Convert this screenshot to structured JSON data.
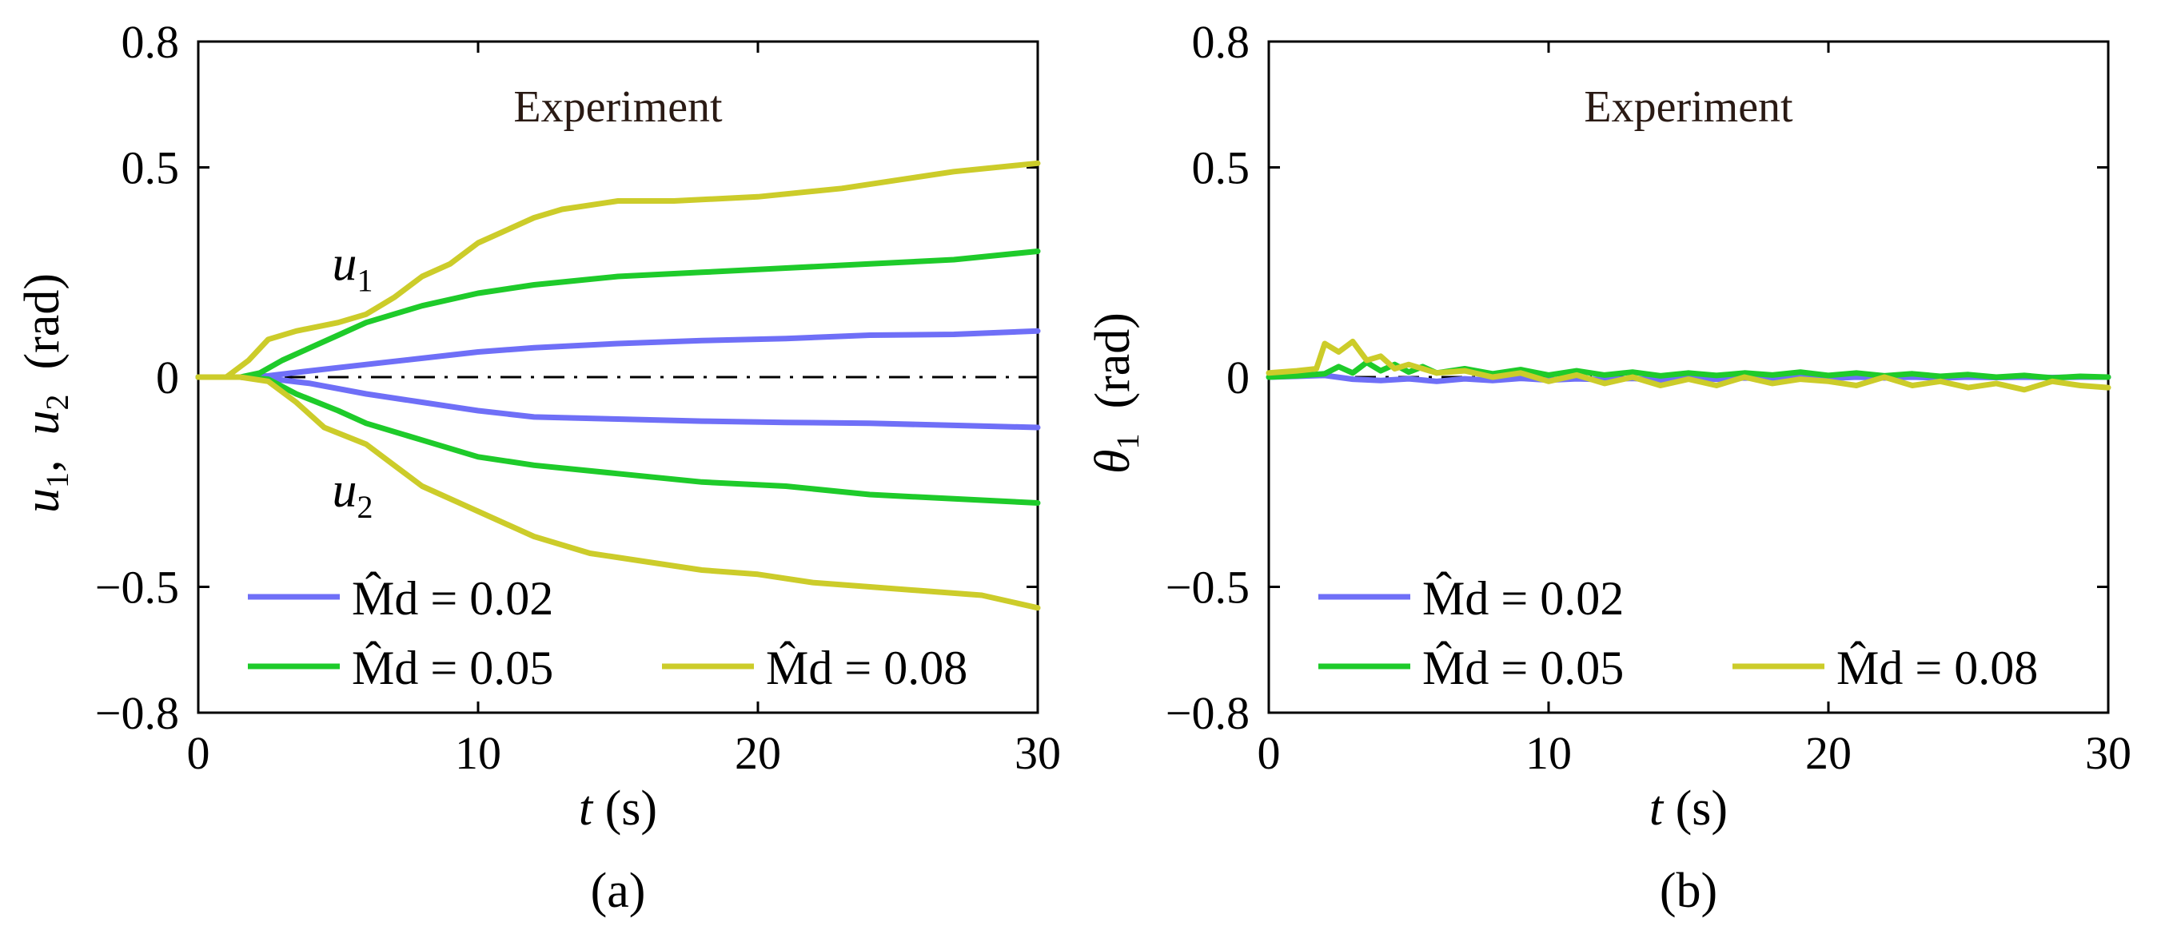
{
  "figure": {
    "captions": [
      "(a)",
      "(b)"
    ]
  },
  "legend_entries": [
    {
      "label": "M̂d = 0.02",
      "color": "#6f6ff7"
    },
    {
      "label": "M̂d = 0.05",
      "color": "#1ecb2a"
    },
    {
      "label": "M̂d = 0.08",
      "color": "#cccc2a"
    }
  ],
  "chart_data": [
    {
      "type": "line",
      "panel": "(a)",
      "title": "Experiment",
      "xlabel": "t (s)",
      "ylabel": "u1, u2 (rad)",
      "xlim": [
        0,
        30
      ],
      "ylim": [
        -0.8,
        0.8
      ],
      "xticks": [
        "0",
        "10",
        "20",
        "30"
      ],
      "yticks": [
        "0.8",
        "0.5",
        "0",
        "−0.5",
        "−0.8"
      ],
      "ytick_values": [
        0.8,
        0.5,
        0,
        -0.5,
        -0.8
      ],
      "annotations": [
        {
          "text": "u1",
          "x": 5.5,
          "y": 0.27
        },
        {
          "text": "u2",
          "x": 5.5,
          "y": -0.27
        }
      ],
      "reference_line": {
        "y": 0,
        "style": "dash-dot"
      },
      "series": [
        {
          "name": "M̂d = 0.02 (u1)",
          "color": "#6f6ff7",
          "x": [
            0,
            1.5,
            2.5,
            4,
            6,
            8,
            10,
            12,
            15,
            18,
            21,
            24,
            27,
            30
          ],
          "y": [
            0,
            0,
            0.003,
            0.015,
            0.03,
            0.045,
            0.06,
            0.07,
            0.08,
            0.087,
            0.092,
            0.1,
            0.102,
            0.11
          ]
        },
        {
          "name": "M̂d = 0.02 (u2)",
          "color": "#6f6ff7",
          "x": [
            0,
            1.5,
            2.5,
            4,
            6,
            8,
            10,
            12,
            15,
            18,
            21,
            24,
            27,
            30
          ],
          "y": [
            0,
            0,
            -0.003,
            -0.015,
            -0.04,
            -0.06,
            -0.08,
            -0.095,
            -0.1,
            -0.105,
            -0.108,
            -0.11,
            -0.115,
            -0.12
          ]
        },
        {
          "name": "M̂d = 0.05 (u1)",
          "color": "#1ecb2a",
          "x": [
            0,
            1.5,
            2.2,
            3,
            4,
            5,
            6,
            8,
            10,
            12,
            15,
            18,
            21,
            24,
            27,
            30
          ],
          "y": [
            0,
            0,
            0.01,
            0.04,
            0.07,
            0.1,
            0.13,
            0.17,
            0.2,
            0.22,
            0.24,
            0.25,
            0.26,
            0.27,
            0.28,
            0.3
          ]
        },
        {
          "name": "M̂d = 0.05 (u2)",
          "color": "#1ecb2a",
          "x": [
            0,
            1.5,
            2.5,
            3.5,
            5,
            6,
            8,
            10,
            12,
            15,
            18,
            21,
            24,
            27,
            30
          ],
          "y": [
            0,
            0,
            -0.005,
            -0.04,
            -0.08,
            -0.11,
            -0.15,
            -0.19,
            -0.21,
            -0.23,
            -0.25,
            -0.26,
            -0.28,
            -0.29,
            -0.3
          ]
        },
        {
          "name": "M̂d = 0.08 (u1)",
          "color": "#cccc2a",
          "x": [
            0,
            1,
            1.8,
            2.5,
            3.5,
            5,
            6,
            7,
            8,
            9,
            10,
            11,
            12,
            13,
            15,
            17,
            20,
            23,
            25,
            27,
            30
          ],
          "y": [
            0,
            0,
            0.04,
            0.09,
            0.11,
            0.13,
            0.15,
            0.19,
            0.24,
            0.27,
            0.32,
            0.35,
            0.38,
            0.4,
            0.42,
            0.42,
            0.43,
            0.45,
            0.47,
            0.49,
            0.51
          ]
        },
        {
          "name": "M̂d = 0.08 (u2)",
          "color": "#cccc2a",
          "x": [
            0,
            1.5,
            2.5,
            3.5,
            4.5,
            6,
            7,
            8,
            10,
            12,
            14,
            16,
            18,
            20,
            22,
            24,
            26,
            28,
            30
          ],
          "y": [
            0,
            0,
            -0.01,
            -0.06,
            -0.12,
            -0.16,
            -0.21,
            -0.26,
            -0.32,
            -0.38,
            -0.42,
            -0.44,
            -0.46,
            -0.47,
            -0.49,
            -0.5,
            -0.51,
            -0.52,
            -0.55
          ]
        }
      ]
    },
    {
      "type": "line",
      "panel": "(b)",
      "title": "Experiment",
      "xlabel": "t (s)",
      "ylabel": "θ1 (rad)",
      "xlim": [
        0,
        30
      ],
      "ylim": [
        -0.8,
        0.8
      ],
      "xticks": [
        "0",
        "10",
        "20",
        "30"
      ],
      "yticks": [
        "0.8",
        "0.5",
        "0",
        "−0.5",
        "−0.8"
      ],
      "ytick_values": [
        0.8,
        0.5,
        0,
        -0.5,
        -0.8
      ],
      "reference_line": {
        "y": 0,
        "style": "dash-dot"
      },
      "series": [
        {
          "name": "M̂d = 0.02",
          "color": "#6f6ff7",
          "x": [
            0,
            1,
            2,
            3,
            4,
            5,
            6,
            7,
            8,
            9,
            10,
            11,
            12,
            13,
            14,
            15,
            16,
            17,
            18,
            19,
            20,
            21,
            22,
            23,
            24,
            25,
            26,
            27,
            28,
            29,
            30
          ],
          "y": [
            0,
            0.002,
            0.004,
            -0.005,
            -0.008,
            -0.004,
            -0.01,
            -0.004,
            -0.008,
            -0.003,
            -0.007,
            -0.004,
            -0.006,
            -0.003,
            -0.007,
            -0.002,
            -0.005,
            -0.002,
            -0.004,
            -0.001,
            -0.003,
            0,
            -0.002,
            0,
            -0.002,
            0,
            -0.001,
            0,
            -0.001,
            0,
            0
          ]
        },
        {
          "name": "M̂d = 0.05",
          "color": "#1ecb2a",
          "x": [
            0,
            1,
            2,
            2.5,
            3,
            3.5,
            4,
            4.5,
            5,
            5.5,
            6,
            7,
            8,
            9,
            10,
            11,
            12,
            13,
            14,
            15,
            16,
            17,
            18,
            19,
            20,
            21,
            22,
            23,
            24,
            25,
            26,
            27,
            28,
            29,
            30
          ],
          "y": [
            0,
            0.003,
            0.008,
            0.025,
            0.01,
            0.035,
            0.015,
            0.03,
            0.012,
            0.025,
            0.01,
            0.02,
            0.008,
            0.018,
            0.005,
            0.015,
            0.005,
            0.012,
            0.003,
            0.01,
            0.004,
            0.01,
            0.005,
            0.012,
            0.004,
            0.01,
            0.003,
            0.008,
            0.002,
            0.006,
            0,
            0.004,
            -0.002,
            0.002,
            0
          ]
        },
        {
          "name": "M̂d = 0.08",
          "color": "#cccc2a",
          "x": [
            0,
            1,
            1.7,
            2,
            2.5,
            3,
            3.5,
            4,
            4.5,
            5,
            6,
            7,
            8,
            9,
            10,
            11,
            12,
            13,
            14,
            15,
            16,
            17,
            18,
            19,
            20,
            21,
            22,
            23,
            24,
            25,
            26,
            27,
            28,
            29,
            30
          ],
          "y": [
            0.01,
            0.015,
            0.02,
            0.08,
            0.06,
            0.085,
            0.04,
            0.05,
            0.02,
            0.03,
            0.01,
            0.015,
            0,
            0.01,
            -0.01,
            0.005,
            -0.015,
            0,
            -0.02,
            -0.005,
            -0.02,
            0,
            -0.015,
            -0.005,
            -0.01,
            -0.02,
            0,
            -0.02,
            -0.01,
            -0.025,
            -0.015,
            -0.03,
            -0.01,
            -0.02,
            -0.025
          ]
        }
      ]
    }
  ]
}
